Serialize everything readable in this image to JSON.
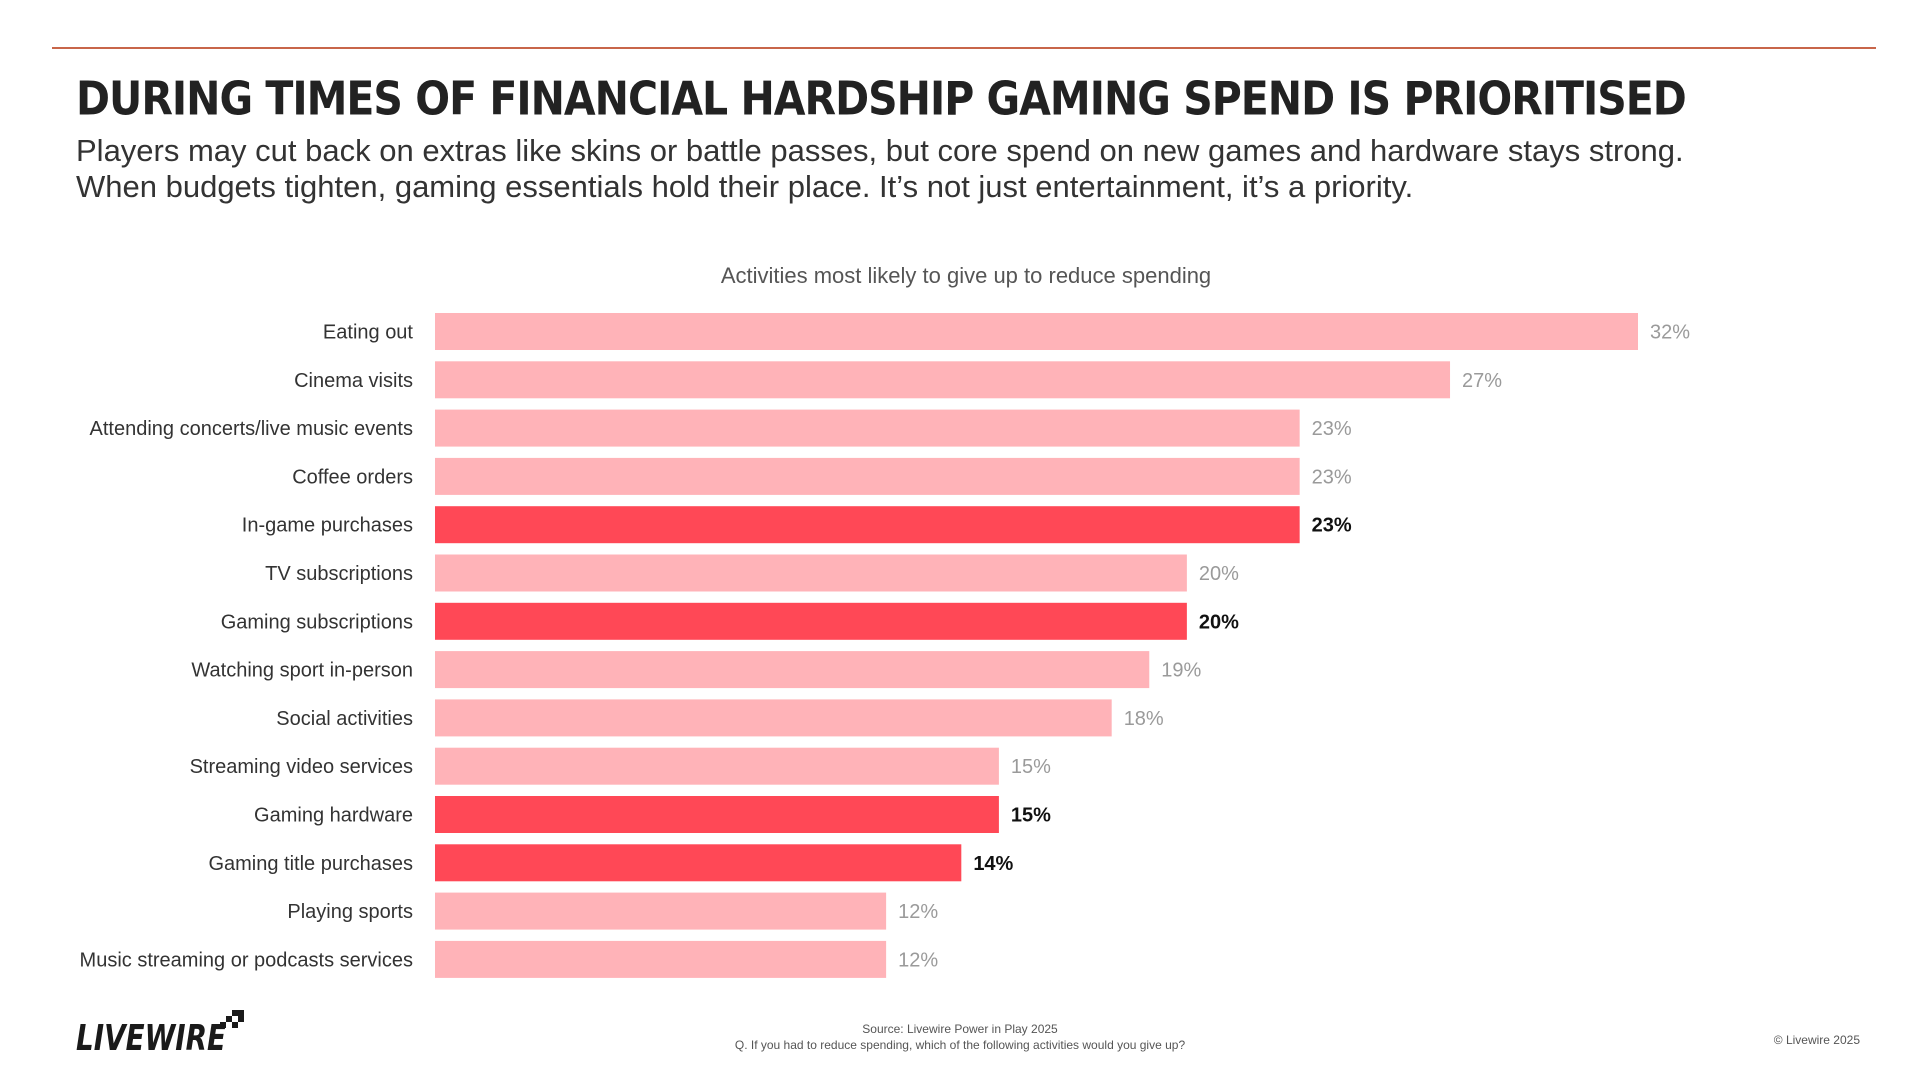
{
  "header": {
    "title": "DURING TIMES OF FINANCIAL HARDSHIP GAMING SPEND IS PRIORITISED",
    "subtitle": "Players may cut back on extras like skins or battle passes, but core spend on new games and hardware stays strong. When budgets tighten, gaming essentials hold their place. It’s not just entertainment, it’s a priority."
  },
  "chart_data": {
    "type": "bar",
    "orientation": "horizontal",
    "title": "Activities most likely to give up to reduce spending",
    "xlabel": "",
    "ylabel": "",
    "xlim": [
      0,
      32
    ],
    "grid": false,
    "value_suffix": "%",
    "categories": [
      "Eating out",
      "Cinema visits",
      "Attending concerts/live music events",
      "Coffee orders",
      "In-game purchases",
      "TV subscriptions",
      "Gaming subscriptions",
      "Watching sport in-person",
      "Social activities",
      "Streaming video services",
      "Gaming hardware",
      "Gaming title purchases",
      "Playing sports",
      "Music streaming or podcasts services"
    ],
    "values": [
      32,
      27,
      23,
      23,
      23,
      20,
      20,
      19,
      18,
      15,
      15,
      14,
      12,
      12
    ],
    "highlighted": [
      false,
      false,
      false,
      false,
      true,
      false,
      true,
      false,
      false,
      false,
      true,
      true,
      false,
      false
    ],
    "colors": {
      "default": "#ffb3b8",
      "highlight": "#ff4856"
    }
  },
  "footer": {
    "logo_text": "LIVEWIRE",
    "source_line": "Source: Livewire Power in Play 2025",
    "question_line": "Q. If you had to reduce spending, which of the following activities would you give up?",
    "copyright": "© Livewire 2025"
  }
}
